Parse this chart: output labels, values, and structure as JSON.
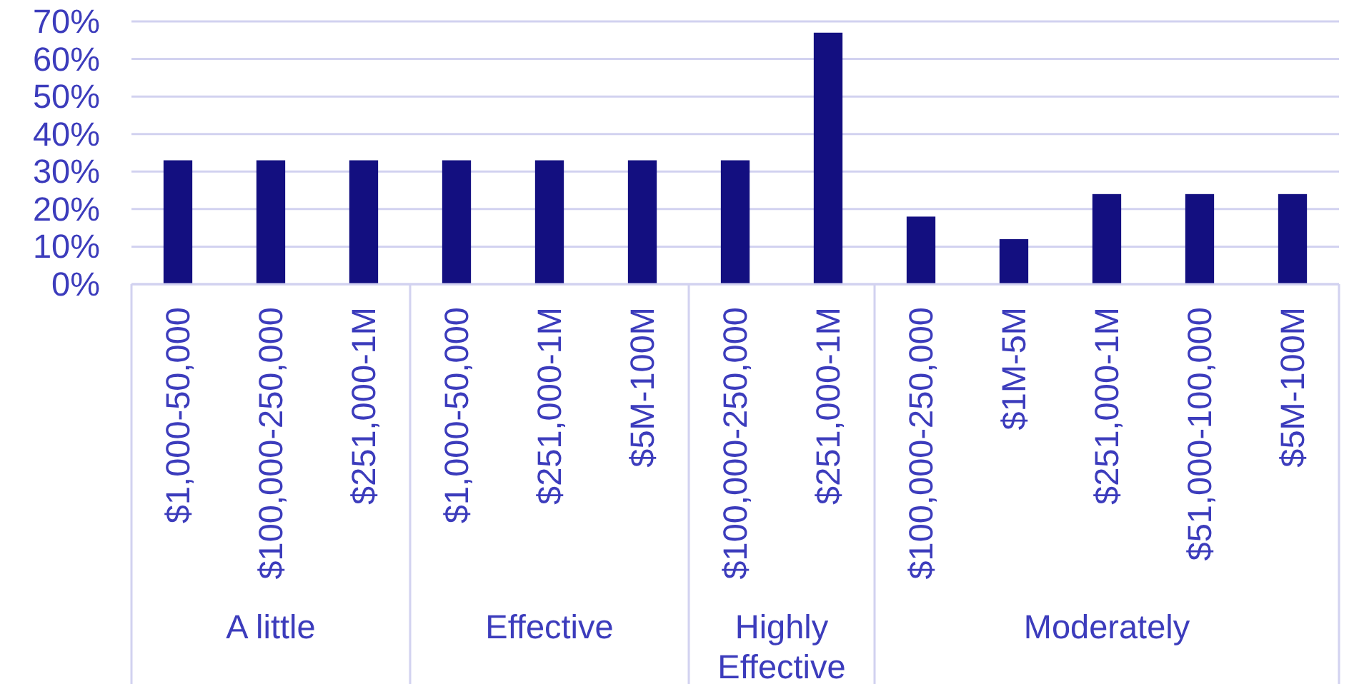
{
  "chart_data": {
    "type": "bar",
    "categories": [
      "$1,000-50,000",
      "$100,000-250,000",
      "$251,000-1M",
      "$1,000-50,000",
      "$251,000-1M",
      "$5M-100M",
      "$100,000-250,000",
      "$251,000-1M",
      "$100,000-250,000",
      "$1M-5M",
      "$251,000-1M",
      "$51,000-100,000",
      "$5M-100M"
    ],
    "series": [
      {
        "color": "#130f80",
        "values": [
          33,
          33,
          33,
          null,
          null,
          null,
          null,
          null,
          null,
          null,
          null,
          null,
          null
        ]
      },
      {
        "color": "#130f80",
        "values": [
          null,
          null,
          null,
          33,
          33,
          33,
          null,
          null,
          null,
          null,
          null,
          null,
          null
        ]
      },
      {
        "color": "#130f80",
        "values": [
          null,
          null,
          null,
          null,
          null,
          null,
          33,
          67,
          null,
          null,
          null,
          null,
          null
        ]
      },
      {
        "color": "#130f80",
        "values": [
          null,
          null,
          null,
          null,
          null,
          null,
          null,
          null,
          18,
          12,
          24,
          24,
          24
        ]
      }
    ],
    "annotations": [
      "A little",
      "Effective",
      "Highly Effective",
      "Moderately"
    ],
    "ylim": [
      0,
      70
    ],
    "yticks": [
      {
        "value": 0,
        "label": "0%"
      },
      {
        "value": 10,
        "label": "10%"
      },
      {
        "value": 20,
        "label": "20%"
      },
      {
        "value": 30,
        "label": "30%"
      },
      {
        "value": 40,
        "label": "40%"
      },
      {
        "value": 50,
        "label": "50%"
      },
      {
        "value": 60,
        "label": "60%"
      },
      {
        "value": 70,
        "label": "70%"
      }
    ],
    "grid": "y"
  }
}
